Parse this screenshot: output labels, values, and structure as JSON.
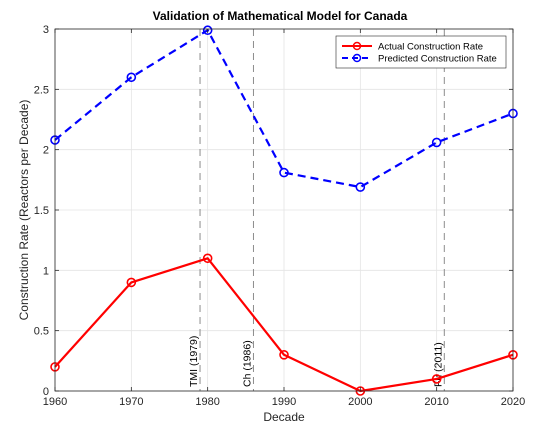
{
  "chart_data": {
    "type": "line",
    "title": "Validation of Mathematical Model for Canada",
    "xlabel": "Decade",
    "ylabel": "Construction Rate (Reactors per Decade)",
    "xlim": [
      1960,
      2020
    ],
    "ylim": [
      0,
      3
    ],
    "xticks": [
      1960,
      1970,
      1980,
      1990,
      2000,
      2010,
      2020
    ],
    "yticks": [
      0,
      0.5,
      1,
      1.5,
      2,
      2.5,
      3
    ],
    "xtick_labels": [
      "1960",
      "1970",
      "1980",
      "1990",
      "2000",
      "2010",
      "2020"
    ],
    "ytick_labels": [
      "0",
      "0.5",
      "1",
      "1.5",
      "2",
      "2.5",
      "3"
    ],
    "grid": true,
    "legend_position": "top-right",
    "x": [
      1960,
      1970,
      1980,
      1990,
      2000,
      2010,
      2020
    ],
    "series": [
      {
        "name": "Actual Construction Rate",
        "values": [
          0.2,
          0.9,
          1.1,
          0.3,
          0.0,
          0.1,
          0.3
        ],
        "color": "#ff0000",
        "style": "solid",
        "marker": "circle"
      },
      {
        "name": "Predicted Construction Rate",
        "values": [
          2.08,
          2.6,
          2.99,
          1.81,
          1.69,
          2.06,
          2.3
        ],
        "color": "#0000ff",
        "style": "dashed",
        "marker": "circle"
      }
    ],
    "events": [
      {
        "x": 1979,
        "label": "TMI (1979)"
      },
      {
        "x": 1986,
        "label": "Ch (1986)"
      },
      {
        "x": 2011,
        "label": "Fu (2011)"
      }
    ]
  }
}
